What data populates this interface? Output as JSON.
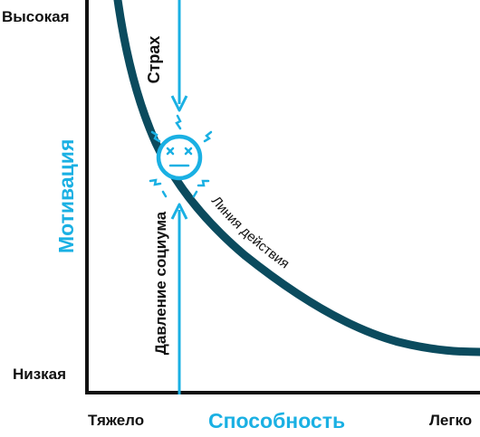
{
  "diagram": {
    "y_axis": {
      "title": "Мотивация",
      "high_label": "Высокая",
      "low_label": "Низкая"
    },
    "x_axis": {
      "title": "Способность",
      "left_label": "Тяжело",
      "right_label": "Легко"
    },
    "curve_label": "Линия действия",
    "top_force_label": "Страх",
    "bottom_force_label": "Давление социума",
    "colors": {
      "accent": "#1ab0e3",
      "curve": "#0b4b5e",
      "axis": "#111111",
      "text": "#111111"
    }
  }
}
